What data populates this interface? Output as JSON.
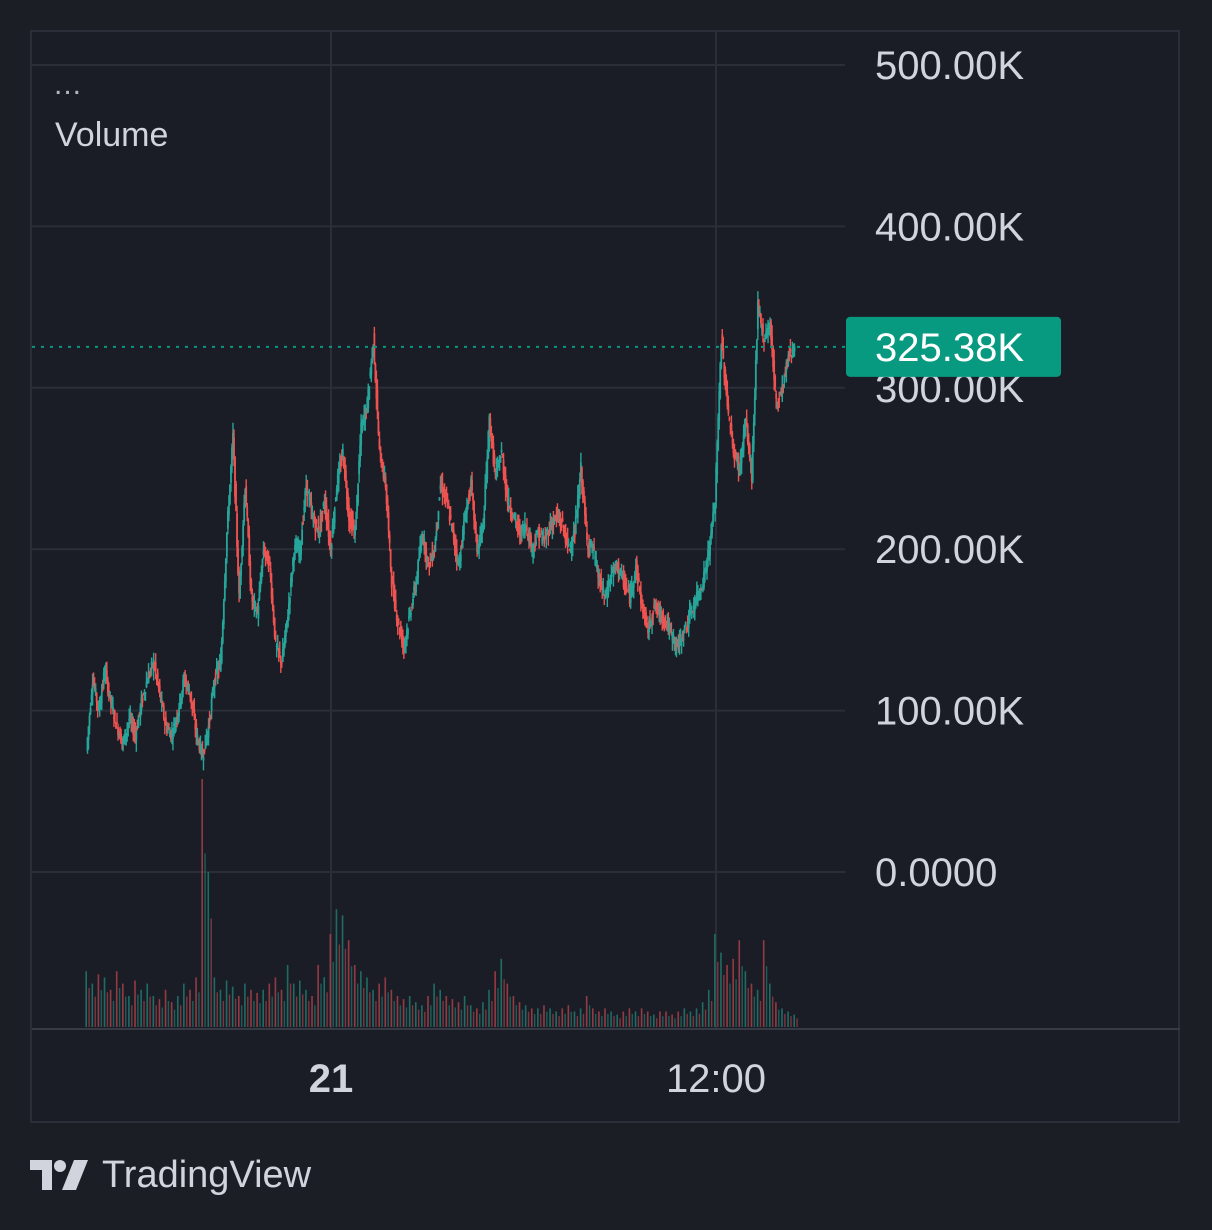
{
  "legend": {
    "menu": "...",
    "title": "Volume"
  },
  "brand": {
    "name": "TradingView",
    "icon": "tradingview-logo-icon"
  },
  "colors": {
    "background": "#1b1d26",
    "grid": "#2a2e39",
    "up": "#26a69a",
    "down": "#ef5350",
    "axis_text": "#d1d4dc",
    "last_price_badge": "#089981"
  },
  "chart_data": {
    "type": "candlestick",
    "y_axis": {
      "min": 0,
      "max": 500000,
      "ticks": [
        "500.00K",
        "400.00K",
        "300.00K",
        "200.00K",
        "100.00K",
        "0.0000"
      ]
    },
    "x_axis": {
      "ticks": [
        {
          "label": "21",
          "bold": true
        },
        {
          "label": "12:00",
          "bold": false
        }
      ]
    },
    "last_value": {
      "value": 325380,
      "label": "325.38K"
    },
    "grid": true,
    "close_path": [
      [
        0,
        75000
      ],
      [
        1,
        120000
      ],
      [
        2,
        100000
      ],
      [
        3,
        125000
      ],
      [
        4,
        105000
      ],
      [
        5,
        90000
      ],
      [
        6,
        80000
      ],
      [
        7,
        95000
      ],
      [
        8,
        85000
      ],
      [
        9,
        105000
      ],
      [
        10,
        120000
      ],
      [
        11,
        130000
      ],
      [
        12,
        110000
      ],
      [
        13,
        90000
      ],
      [
        14,
        85000
      ],
      [
        15,
        100000
      ],
      [
        16,
        120000
      ],
      [
        17,
        110000
      ],
      [
        18,
        85000
      ],
      [
        19,
        72000
      ],
      [
        20,
        90000
      ],
      [
        21,
        120000
      ],
      [
        22,
        130000
      ],
      [
        23,
        210000
      ],
      [
        24,
        270000
      ],
      [
        25,
        170000
      ],
      [
        26,
        240000
      ],
      [
        27,
        170000
      ],
      [
        28,
        160000
      ],
      [
        29,
        200000
      ],
      [
        30,
        190000
      ],
      [
        31,
        140000
      ],
      [
        32,
        130000
      ],
      [
        33,
        160000
      ],
      [
        34,
        200000
      ],
      [
        35,
        200000
      ],
      [
        36,
        240000
      ],
      [
        37,
        220000
      ],
      [
        38,
        210000
      ],
      [
        39,
        230000
      ],
      [
        40,
        200000
      ],
      [
        41,
        240000
      ],
      [
        42,
        260000
      ],
      [
        43,
        220000
      ],
      [
        44,
        210000
      ],
      [
        45,
        275000
      ],
      [
        46,
        290000
      ],
      [
        47,
        330000
      ],
      [
        48,
        260000
      ],
      [
        49,
        240000
      ],
      [
        50,
        180000
      ],
      [
        51,
        155000
      ],
      [
        52,
        140000
      ],
      [
        53,
        160000
      ],
      [
        54,
        180000
      ],
      [
        55,
        210000
      ],
      [
        56,
        190000
      ],
      [
        57,
        200000
      ],
      [
        58,
        240000
      ],
      [
        59,
        230000
      ],
      [
        60,
        210000
      ],
      [
        61,
        190000
      ],
      [
        62,
        220000
      ],
      [
        63,
        240000
      ],
      [
        64,
        200000
      ],
      [
        65,
        215000
      ],
      [
        66,
        280000
      ],
      [
        67,
        245000
      ],
      [
        68,
        260000
      ],
      [
        69,
        230000
      ],
      [
        70,
        220000
      ],
      [
        71,
        210000
      ],
      [
        72,
        215000
      ],
      [
        73,
        200000
      ],
      [
        74,
        210000
      ],
      [
        75,
        205000
      ],
      [
        76,
        215000
      ],
      [
        77,
        220000
      ],
      [
        78,
        215000
      ],
      [
        79,
        200000
      ],
      [
        80,
        210000
      ],
      [
        81,
        250000
      ],
      [
        82,
        205000
      ],
      [
        83,
        200000
      ],
      [
        84,
        180000
      ],
      [
        85,
        170000
      ],
      [
        86,
        185000
      ],
      [
        87,
        190000
      ],
      [
        88,
        180000
      ],
      [
        89,
        170000
      ],
      [
        90,
        190000
      ],
      [
        91,
        165000
      ],
      [
        92,
        150000
      ],
      [
        93,
        165000
      ],
      [
        94,
        160000
      ],
      [
        95,
        155000
      ],
      [
        96,
        145000
      ],
      [
        97,
        140000
      ],
      [
        98,
        150000
      ],
      [
        99,
        160000
      ],
      [
        100,
        170000
      ],
      [
        101,
        180000
      ],
      [
        102,
        200000
      ],
      [
        103,
        230000
      ],
      [
        104,
        330000
      ],
      [
        105,
        290000
      ],
      [
        106,
        260000
      ],
      [
        107,
        250000
      ],
      [
        108,
        280000
      ],
      [
        109,
        245000
      ],
      [
        110,
        350000
      ],
      [
        111,
        330000
      ],
      [
        112,
        340000
      ],
      [
        113,
        290000
      ],
      [
        114,
        300000
      ],
      [
        115,
        320000
      ],
      [
        116,
        325380
      ]
    ],
    "volume": [
      18,
      14,
      17,
      16,
      12,
      18,
      14,
      10,
      15,
      12,
      14,
      10,
      9,
      12,
      8,
      10,
      14,
      12,
      16,
      80,
      50,
      16,
      12,
      15,
      13,
      10,
      14,
      12,
      11,
      12,
      14,
      16,
      12,
      20,
      14,
      15,
      12,
      10,
      20,
      16,
      30,
      38,
      36,
      28,
      20,
      18,
      16,
      12,
      14,
      16,
      12,
      10,
      9,
      10,
      8,
      7,
      10,
      14,
      12,
      10,
      9,
      8,
      10,
      7,
      6,
      8,
      12,
      18,
      22,
      14,
      10,
      8,
      7,
      6,
      6,
      7,
      6,
      5,
      6,
      7,
      5,
      6,
      10,
      6,
      5,
      6,
      5,
      4,
      5,
      6,
      5,
      6,
      5,
      4,
      5,
      5,
      4,
      5,
      6,
      5,
      6,
      8,
      12,
      30,
      24,
      20,
      22,
      28,
      18,
      14,
      12,
      28,
      14,
      8,
      6,
      5,
      4
    ]
  }
}
